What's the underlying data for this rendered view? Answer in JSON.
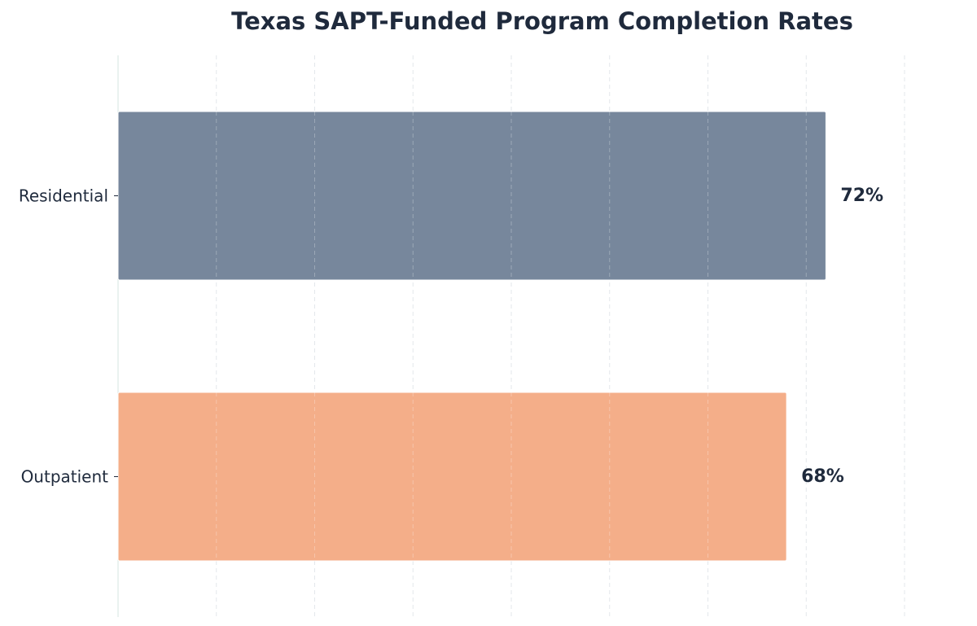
{
  "chart_data": {
    "type": "bar",
    "orientation": "horizontal",
    "title": "Texas SAPT-Funded Program Completion Rates",
    "xlabel": "",
    "ylabel": "",
    "categories": [
      "Residential",
      "Outpatient"
    ],
    "values": [
      72,
      68
    ],
    "value_labels": [
      "72%",
      "68%"
    ],
    "xlim": [
      0,
      80
    ],
    "grid": true,
    "colors": [
      "#77879c",
      "#f4ae89"
    ]
  }
}
